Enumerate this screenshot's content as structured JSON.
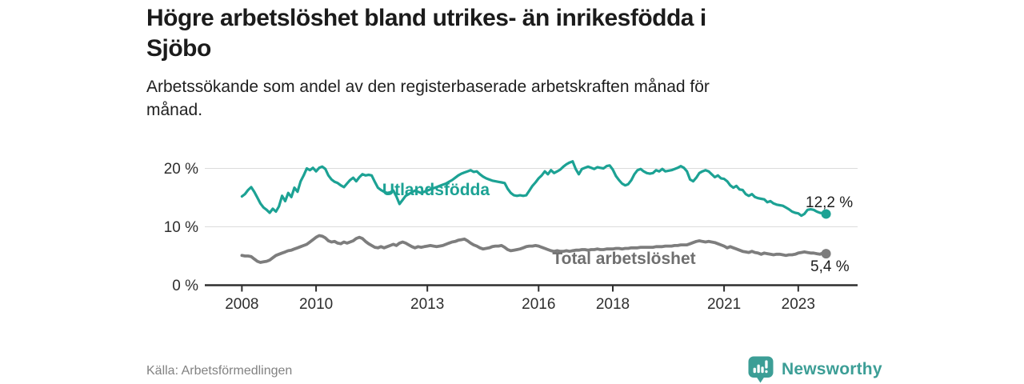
{
  "page": {
    "title": "Högre arbetslöshet bland utrikes- än inrikesfödda i\nSjöbo",
    "subtitle": "Arbetssökande som andel av den registerbaserade arbetskraften månad för\nmånad.",
    "source": "Källa: Arbetsförmedlingen",
    "brand": "Newsworthy"
  },
  "colors": {
    "series1": "#1ca294",
    "series2": "#7d7d7d",
    "series2_label": "#6f6f6f",
    "grid": "#dcdcdc",
    "axis": "#2e2e2e",
    "tick_text": "#2e2e2e",
    "annotation_text": "#1d1d1d",
    "brand_teal": "#3c9e96"
  },
  "chart_data": {
    "type": "line",
    "title": "Högre arbetslöshet bland utrikes- än inrikesfödda i Sjöbo",
    "subtitle": "Arbetssökande som andel av den registerbaserade arbetskraften månad för månad.",
    "unit": "%",
    "grid": "horizontal",
    "legend_position": "inline-labels",
    "x_range_years": [
      2007.0,
      2024.6
    ],
    "ylim": [
      0,
      22.7
    ],
    "y_ticks": [
      {
        "value": 0,
        "label": "0 %"
      },
      {
        "value": 10,
        "label": "10 %"
      },
      {
        "value": 20,
        "label": "20 %"
      }
    ],
    "x_ticks": [
      {
        "value": 2008,
        "label": "2008"
      },
      {
        "value": 2010,
        "label": "2010"
      },
      {
        "value": 2013,
        "label": "2013"
      },
      {
        "value": 2016,
        "label": "2016"
      },
      {
        "value": 2018,
        "label": "2018"
      },
      {
        "value": 2021,
        "label": "2021"
      },
      {
        "value": 2023,
        "label": "2023"
      }
    ],
    "series": [
      {
        "name": "Utlandsfödda",
        "color": "#1ca294",
        "line_width": 3.2,
        "start": "2008-01",
        "interval": "monthly",
        "end_label": "12,2 %",
        "end_value": 12.2,
        "values": [
          15.2,
          15.6,
          16.3,
          16.8,
          16.0,
          15.0,
          14.0,
          13.3,
          12.9,
          12.4,
          13.1,
          12.6,
          13.5,
          15.3,
          14.4,
          15.8,
          15.1,
          16.7,
          16.0,
          17.8,
          18.8,
          20.0,
          19.7,
          20.1,
          19.5,
          20.1,
          20.3,
          19.9,
          18.8,
          18.1,
          17.7,
          17.5,
          17.1,
          16.8,
          17.4,
          18.0,
          18.4,
          17.8,
          18.5,
          19.0,
          18.8,
          18.9,
          18.8,
          17.7,
          16.7,
          16.3,
          16.0,
          15.8,
          15.9,
          16.2,
          15.2,
          13.9,
          14.6,
          15.3,
          15.6,
          15.9,
          16.2,
          16.0,
          15.8,
          16.0,
          16.2,
          16.4,
          16.6,
          16.8,
          17.0,
          17.2,
          17.4,
          17.7,
          18.0,
          18.4,
          18.8,
          19.1,
          19.3,
          19.5,
          19.7,
          19.4,
          19.5,
          19.0,
          18.6,
          18.3,
          18.1,
          17.9,
          17.8,
          17.7,
          17.6,
          17.5,
          16.5,
          15.8,
          15.4,
          15.3,
          15.4,
          15.3,
          15.4,
          16.2,
          17.0,
          17.6,
          18.3,
          18.8,
          19.5,
          19.0,
          19.7,
          19.2,
          19.5,
          19.8,
          20.3,
          20.7,
          21.0,
          21.2,
          19.9,
          19.0,
          19.9,
          20.1,
          20.3,
          20.1,
          19.9,
          20.2,
          20.1,
          20.0,
          20.4,
          20.5,
          19.8,
          18.7,
          18.0,
          17.4,
          17.1,
          17.3,
          18.0,
          19.0,
          19.7,
          19.9,
          19.5,
          19.2,
          19.1,
          19.2,
          19.7,
          19.5,
          19.9,
          19.5,
          19.6,
          19.7,
          19.9,
          20.1,
          20.4,
          20.1,
          19.5,
          18.1,
          17.8,
          18.4,
          19.2,
          19.5,
          19.7,
          19.5,
          19.0,
          18.5,
          18.8,
          18.3,
          18.2,
          17.8,
          17.1,
          16.7,
          17.0,
          16.4,
          16.3,
          15.6,
          15.3,
          15.6,
          15.1,
          14.9,
          14.8,
          14.7,
          14.2,
          14.4,
          14.0,
          13.8,
          13.7,
          13.6,
          13.3,
          13.0,
          12.6,
          12.4,
          12.3,
          11.9,
          12.2,
          12.9,
          13.0,
          12.9,
          12.6,
          12.4,
          12.3,
          12.2
        ]
      },
      {
        "name": "Total arbetslöshet",
        "color": "#7d7d7d",
        "label_color": "#6f6f6f",
        "line_width": 3.8,
        "start": "2008-01",
        "interval": "monthly",
        "end_label": "5,4 %",
        "end_value": 5.4,
        "values": [
          5.1,
          5.0,
          5.0,
          4.9,
          4.5,
          4.1,
          3.9,
          4.0,
          4.1,
          4.3,
          4.7,
          5.1,
          5.3,
          5.5,
          5.7,
          5.9,
          6.0,
          6.2,
          6.4,
          6.6,
          6.8,
          7.0,
          7.4,
          7.8,
          8.2,
          8.5,
          8.4,
          8.1,
          7.6,
          7.4,
          7.5,
          7.2,
          7.1,
          7.4,
          7.2,
          7.4,
          7.6,
          8.0,
          8.2,
          8.0,
          7.5,
          7.1,
          6.8,
          6.5,
          6.4,
          6.6,
          6.4,
          6.6,
          6.8,
          7.0,
          6.8,
          7.2,
          7.4,
          7.2,
          6.9,
          6.6,
          6.4,
          6.6,
          6.5,
          6.6,
          6.7,
          6.8,
          6.7,
          6.6,
          6.7,
          6.8,
          7.0,
          7.2,
          7.4,
          7.5,
          7.7,
          7.8,
          7.9,
          7.6,
          7.2,
          6.9,
          6.7,
          6.4,
          6.2,
          6.3,
          6.4,
          6.6,
          6.7,
          6.7,
          6.8,
          6.5,
          6.1,
          5.9,
          6.0,
          6.1,
          6.2,
          6.4,
          6.6,
          6.7,
          6.7,
          6.8,
          6.7,
          6.5,
          6.3,
          6.1,
          5.9,
          5.8,
          5.9,
          5.8,
          5.8,
          5.9,
          5.8,
          5.9,
          6.0,
          6.0,
          6.1,
          6.1,
          6.0,
          6.1,
          6.1,
          6.2,
          6.1,
          6.1,
          6.2,
          6.2,
          6.2,
          6.3,
          6.3,
          6.2,
          6.3,
          6.3,
          6.4,
          6.4,
          6.4,
          6.5,
          6.5,
          6.5,
          6.5,
          6.5,
          6.6,
          6.6,
          6.6,
          6.7,
          6.7,
          6.7,
          6.8,
          6.8,
          6.9,
          6.9,
          6.9,
          7.1,
          7.3,
          7.5,
          7.6,
          7.5,
          7.4,
          7.5,
          7.4,
          7.3,
          7.1,
          6.9,
          6.7,
          6.4,
          6.6,
          6.4,
          6.2,
          6.0,
          5.8,
          5.7,
          5.6,
          5.8,
          5.6,
          5.5,
          5.3,
          5.5,
          5.4,
          5.3,
          5.2,
          5.3,
          5.3,
          5.2,
          5.1,
          5.2,
          5.2,
          5.3,
          5.5,
          5.6,
          5.7,
          5.6,
          5.5,
          5.5,
          5.4,
          5.3,
          5.5,
          5.4
        ]
      }
    ]
  }
}
